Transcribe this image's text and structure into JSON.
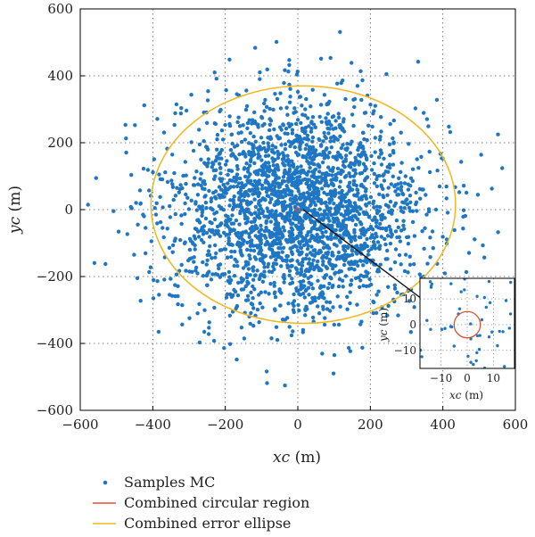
{
  "chart_data": {
    "type": "scatter",
    "title": "",
    "xlabel": "xc",
    "xlabel_unit": "(m)",
    "ylabel": "yc",
    "ylabel_unit": "(m)",
    "xlim": [
      -600,
      600
    ],
    "ylim": [
      -600,
      600
    ],
    "xticks": [
      -600,
      -400,
      -200,
      0,
      200,
      400,
      600
    ],
    "yticks": [
      -600,
      -400,
      -200,
      0,
      200,
      400,
      600
    ],
    "xtick_labels": [
      "−600",
      "−400",
      "−200",
      "0",
      "200",
      "400",
      "600"
    ],
    "ytick_labels": [
      "−600",
      "−400",
      "−200",
      "0",
      "200",
      "400",
      "600"
    ],
    "grid": "dotted",
    "series": [
      {
        "name": "Samples MC",
        "kind": "scatter",
        "color": "#1f77c4",
        "distribution": {
          "mean": [
            0,
            0
          ],
          "std": [
            175,
            160
          ],
          "count": 2600
        }
      },
      {
        "name": "Combined circular region",
        "kind": "circle",
        "color": "#e0522d",
        "center": [
          0,
          0
        ],
        "radius": 5
      },
      {
        "name": "Combined error ellipse",
        "kind": "ellipse",
        "color": "#f2b71f",
        "center": [
          15,
          15
        ],
        "semi_axes": [
          420,
          355
        ]
      }
    ],
    "inset": {
      "xlim": [
        -18,
        18
      ],
      "ylim": [
        -17,
        18
      ],
      "xticks": [
        -10,
        0,
        10
      ],
      "yticks": [
        -10,
        0,
        10
      ],
      "xtick_labels": [
        "−10",
        "0",
        "10"
      ],
      "ytick_labels": [
        "−10",
        "0",
        "10"
      ],
      "xlabel": "xc",
      "xlabel_unit": "(m)",
      "ylabel": "yc",
      "ylabel_unit": "(m)"
    },
    "legend": {
      "placement": "bottom-left"
    }
  }
}
